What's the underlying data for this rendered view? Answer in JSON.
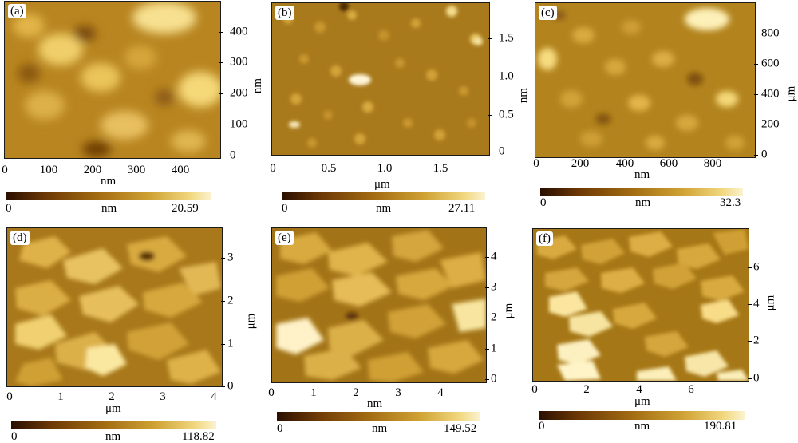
{
  "panels": [
    {
      "label": "(a)",
      "xticks": [
        "0",
        "100",
        "200",
        "300",
        "400"
      ],
      "xunit": "nm",
      "yticks": [
        "400",
        "300",
        "200",
        "100",
        "0"
      ],
      "yunit": "nm",
      "bar_min": "0",
      "bar_unit": "nm",
      "bar_max": "20.59"
    },
    {
      "label": "(b)",
      "xticks": [
        "0",
        "0.5",
        "1.0",
        "1.5"
      ],
      "xunit": "μm",
      "yticks": [
        "1.5",
        "1.0",
        "0.5",
        "0"
      ],
      "yunit": "nm",
      "bar_min": "0",
      "bar_unit": "nm",
      "bar_max": "27.11"
    },
    {
      "label": "(c)",
      "xticks": [
        "0",
        "200",
        "400",
        "600",
        "800"
      ],
      "xunit": "nm",
      "yticks": [
        "800",
        "600",
        "400",
        "200",
        "0"
      ],
      "yunit": "μm",
      "bar_min": "0",
      "bar_unit": "nm",
      "bar_max": "32.3"
    },
    {
      "label": "(d)",
      "xticks": [
        "0",
        "1",
        "2",
        "3",
        "4"
      ],
      "xunit": "μm",
      "yticks": [
        "3",
        "2",
        "1",
        "0"
      ],
      "yunit": "μm",
      "bar_min": "0",
      "bar_unit": "nm",
      "bar_max": "118.82"
    },
    {
      "label": "(e)",
      "xticks": [
        "0",
        "1",
        "2",
        "3",
        "4"
      ],
      "xunit": "nm",
      "yticks": [
        "4",
        "3",
        "2",
        "1",
        "0"
      ],
      "yunit": "μm",
      "bar_min": "0",
      "bar_unit": "nm",
      "bar_max": "149.52"
    },
    {
      "label": "(f)",
      "xticks": [
        "0",
        "2",
        "4",
        "6"
      ],
      "xunit": "μm",
      "yticks": [
        "6",
        "4",
        "2",
        "0"
      ],
      "yunit": "μm",
      "bar_min": "0",
      "bar_unit": "nm",
      "bar_max": "190.81"
    }
  ],
  "colors": {
    "bar_dark": "#2a0e00",
    "bar_mid": "#c99a2b",
    "bar_light": "#fbf3d0"
  }
}
